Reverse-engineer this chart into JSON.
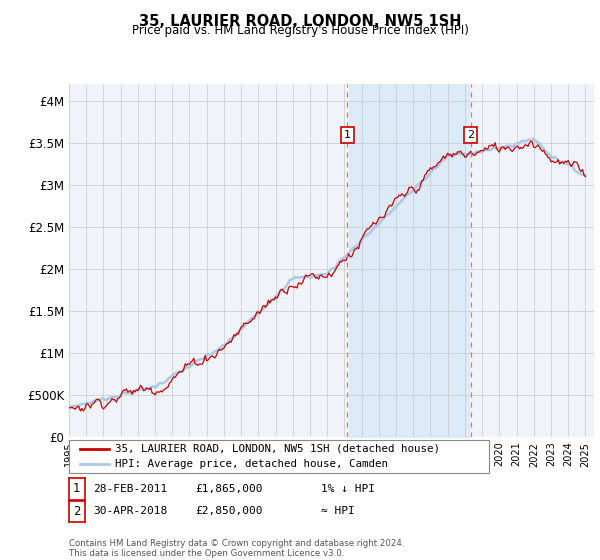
{
  "title": "35, LAURIER ROAD, LONDON, NW5 1SH",
  "subtitle": "Price paid vs. HM Land Registry's House Price Index (HPI)",
  "ylabel_ticks": [
    "£0",
    "£500K",
    "£1M",
    "£1.5M",
    "£2M",
    "£2.5M",
    "£3M",
    "£3.5M",
    "£4M"
  ],
  "ylabel_values": [
    0,
    500000,
    1000000,
    1500000,
    2000000,
    2500000,
    3000000,
    3500000,
    4000000
  ],
  "ylim": [
    0,
    4200000
  ],
  "xlim_start": 1995.0,
  "xlim_end": 2025.5,
  "sale1_date": 2011.17,
  "sale1_price": 1865000,
  "sale2_date": 2018.33,
  "sale2_price": 2850000,
  "hpi_color": "#aac8e8",
  "price_color": "#cc0000",
  "shade_color": "#ddeaf8",
  "legend_label1": "35, LAURIER ROAD, LONDON, NW5 1SH (detached house)",
  "legend_label2": "HPI: Average price, detached house, Camden",
  "annotation1_label": "1",
  "annotation1_date": "28-FEB-2011",
  "annotation1_price": "£1,865,000",
  "annotation1_hpi": "1% ↓ HPI",
  "annotation2_label": "2",
  "annotation2_date": "30-APR-2018",
  "annotation2_price": "£2,850,000",
  "annotation2_hpi": "≈ HPI",
  "footer": "Contains HM Land Registry data © Crown copyright and database right 2024.\nThis data is licensed under the Open Government Licence v3.0.",
  "background_color": "#ffffff",
  "plot_bg_color": "#f0f4fa"
}
